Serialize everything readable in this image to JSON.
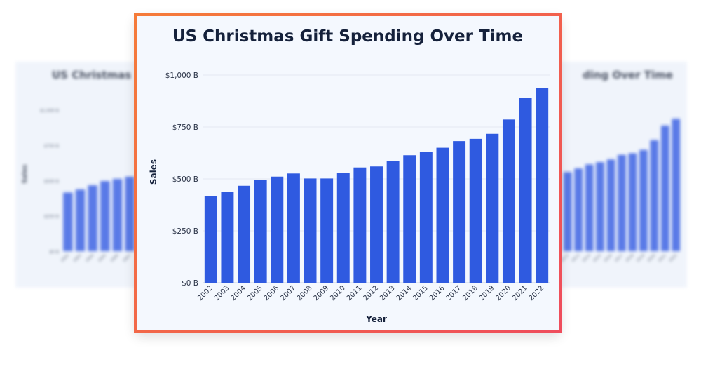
{
  "chart_data": {
    "type": "bar",
    "title": "US Christmas Gift Spending Over Time",
    "xlabel": "Year",
    "ylabel": "Sales",
    "categories": [
      "2002",
      "2003",
      "2004",
      "2005",
      "2006",
      "2007",
      "2008",
      "2009",
      "2010",
      "2011",
      "2012",
      "2013",
      "2014",
      "2015",
      "2016",
      "2017",
      "2018",
      "2019",
      "2020",
      "2021",
      "2022"
    ],
    "values": [
      416,
      437,
      467,
      496,
      511,
      526,
      502,
      502,
      529,
      555,
      560,
      586,
      614,
      630,
      650,
      682,
      693,
      717,
      786,
      889,
      937
    ],
    "ylim": [
      0,
      1000
    ],
    "yticks": [
      "$0 B",
      "$250 B",
      "$500 B",
      "$750 B",
      "$1,000 B"
    ],
    "ytick_values": [
      0,
      250,
      500,
      750,
      1000
    ],
    "bar_color": "#2f5ae0",
    "grid": true,
    "legend": "none"
  },
  "ghost_left": {
    "title": "US Christmas",
    "ylabel": "Sales"
  },
  "ghost_right": {
    "title": "ding Over Time"
  }
}
